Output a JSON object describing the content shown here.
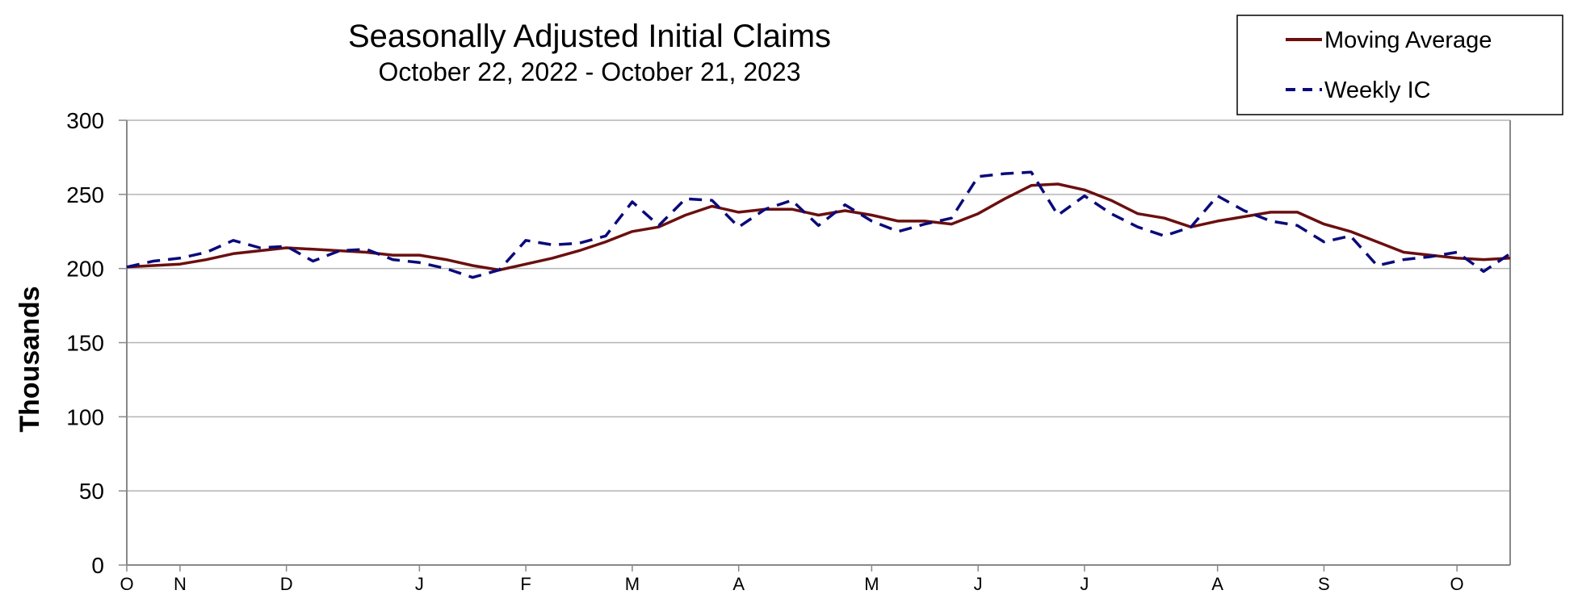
{
  "chart_data": {
    "type": "line",
    "title": "Seasonally Adjusted Initial Claims",
    "subtitle": "October 22, 2022 - October 21, 2023",
    "ylabel": "Thousands",
    "xlabel": "",
    "ylim": [
      0,
      300
    ],
    "yticks": [
      "0",
      "50",
      "100",
      "150",
      "200",
      "250",
      "300"
    ],
    "grid": true,
    "legend_position": "top-right",
    "x_period": {
      "start": "2022-10-22",
      "end": "2023-10-21",
      "frequency": "weekly"
    },
    "month_ticks": [
      {
        "label": "O",
        "date": "2022-10-22"
      },
      {
        "label": "N",
        "date": "2022-11-05"
      },
      {
        "label": "D",
        "date": "2022-12-03"
      },
      {
        "label": "J",
        "date": "2023-01-07"
      },
      {
        "label": "F",
        "date": "2023-02-04"
      },
      {
        "label": "M",
        "date": "2023-03-04"
      },
      {
        "label": "A",
        "date": "2023-04-01"
      },
      {
        "label": "M",
        "date": "2023-05-06"
      },
      {
        "label": "J",
        "date": "2023-06-03"
      },
      {
        "label": "J",
        "date": "2023-07-01"
      },
      {
        "label": "A",
        "date": "2023-08-05"
      },
      {
        "label": "S",
        "date": "2023-09-02"
      },
      {
        "label": "O",
        "date": "2023-10-07"
      }
    ],
    "series": [
      {
        "name": "Moving Average",
        "color": "#6b0f0f",
        "style": "solid",
        "values": [
          201,
          202,
          203,
          206,
          210,
          212,
          214,
          213,
          212,
          211,
          209,
          209,
          206,
          202,
          199,
          203,
          207,
          212,
          218,
          225,
          228,
          236,
          242,
          238,
          240,
          240,
          236,
          239,
          236,
          232,
          232,
          230,
          237,
          247,
          256,
          257,
          253,
          246,
          237,
          234,
          228,
          232,
          235,
          238,
          238,
          230,
          225,
          218,
          211,
          209,
          207,
          206,
          207
        ]
      },
      {
        "name": "Weekly IC",
        "color": "#0a0a7a",
        "style": "dashed",
        "values": [
          201,
          205,
          207,
          211,
          219,
          214,
          215,
          205,
          212,
          213,
          206,
          204,
          200,
          194,
          199,
          219,
          216,
          217,
          222,
          245,
          229,
          247,
          246,
          228,
          240,
          246,
          229,
          243,
          232,
          225,
          230,
          234,
          262,
          264,
          265,
          236,
          249,
          237,
          228,
          222,
          228,
          249,
          239,
          232,
          229,
          218,
          222,
          202,
          206,
          208,
          211,
          198,
          210
        ]
      }
    ]
  }
}
